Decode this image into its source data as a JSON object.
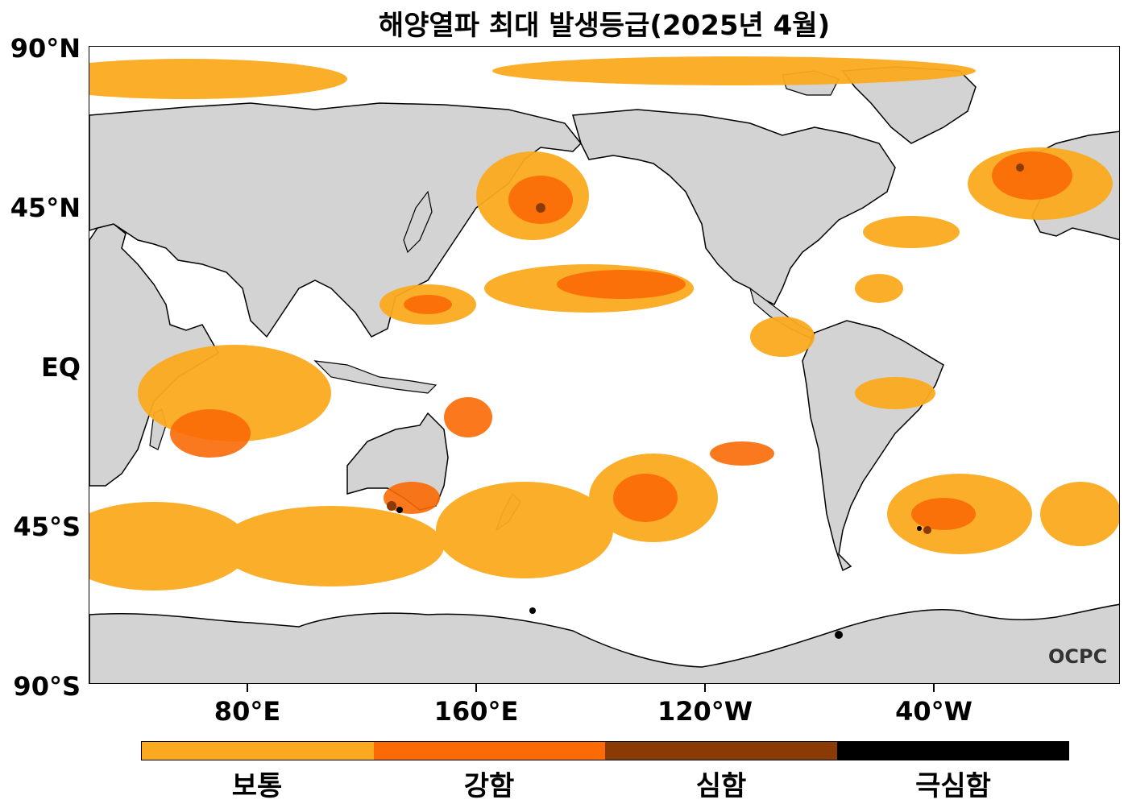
{
  "title": "해양열파 최대 발생등급(2025년 4월)",
  "y_axis": {
    "ticks": [
      "90°N",
      "45°N",
      "EQ",
      "45°S",
      "90°S"
    ]
  },
  "x_axis": {
    "ticks": [
      "80°E",
      "160°E",
      "120°W",
      "40°W"
    ]
  },
  "legend": {
    "categories": [
      {
        "label": "보통",
        "color": "#FBAA1F"
      },
      {
        "label": "강함",
        "color": "#FB6A05"
      },
      {
        "label": "심함",
        "color": "#8A3A05"
      },
      {
        "label": "극심함",
        "color": "#000000"
      }
    ]
  },
  "map": {
    "land_color": "#D3D3D3",
    "ocean_color": "#FFFFFF",
    "coastline_color": "#000000"
  },
  "logo": "OCPC"
}
